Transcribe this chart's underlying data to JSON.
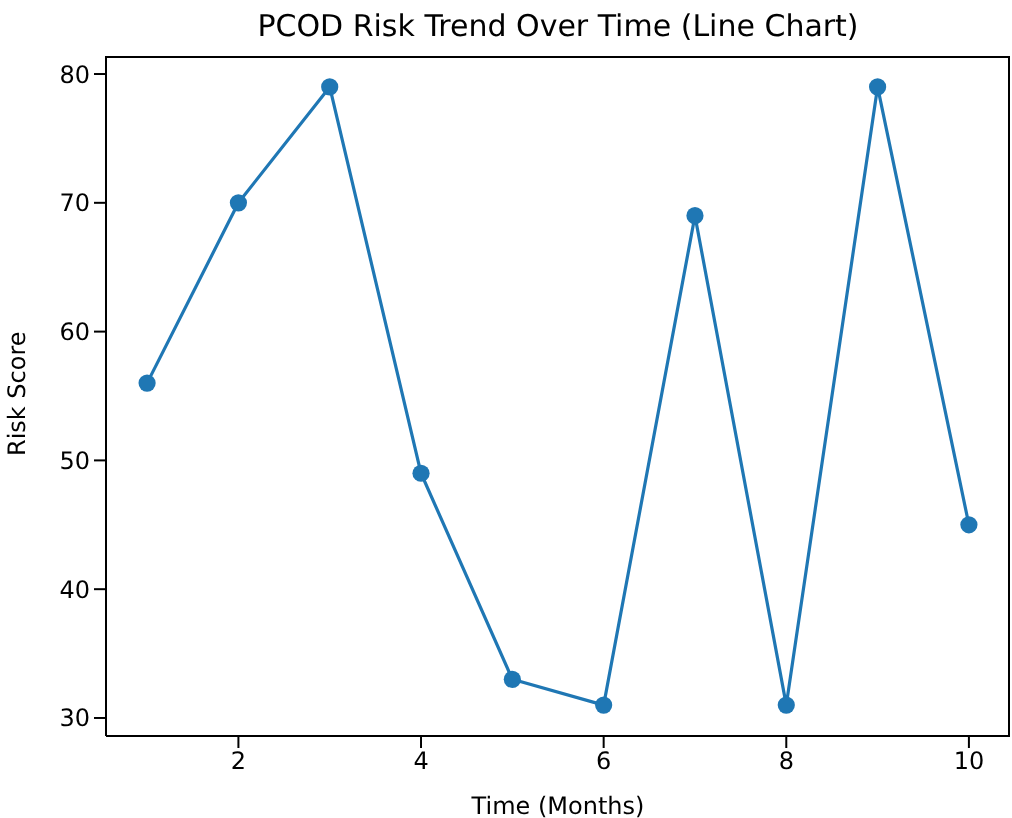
{
  "chart_data": {
    "type": "line",
    "title": "PCOD Risk Trend Over Time (Line Chart)",
    "xlabel": "Time (Months)",
    "ylabel": "Risk Score",
    "x": [
      1,
      2,
      3,
      4,
      5,
      6,
      7,
      8,
      9,
      10
    ],
    "series": [
      {
        "color": "#1f77b4",
        "values": [
          56,
          70,
          79,
          49,
          33,
          31,
          69,
          31,
          79,
          45
        ]
      }
    ],
    "xlim": [
      0.55,
      10.45
    ],
    "xticks": [
      2,
      4,
      6,
      8,
      10
    ],
    "ylim": [
      28.6,
      81.4
    ],
    "yticks": [
      30,
      40,
      50,
      60,
      70,
      80
    ],
    "grid": false,
    "legend": false,
    "marker": "circle",
    "line_style": "solid"
  }
}
